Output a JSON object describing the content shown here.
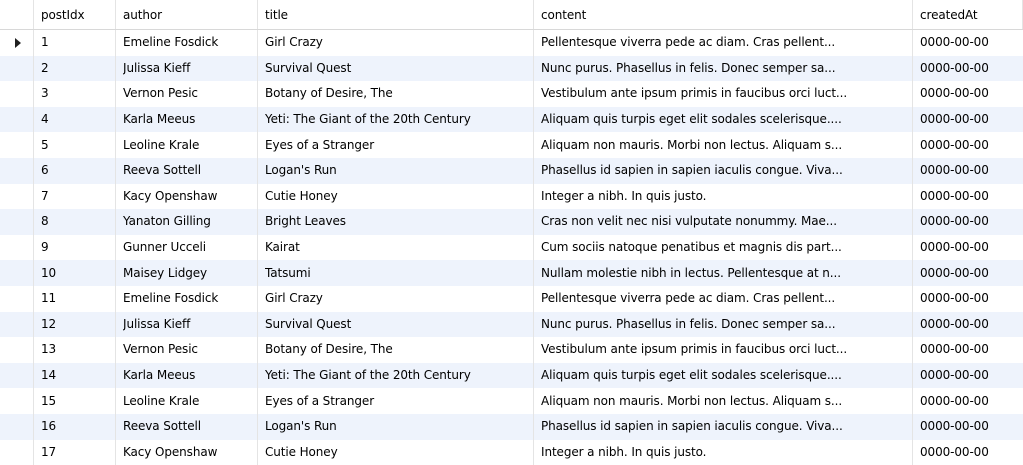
{
  "table": {
    "columns": [
      "postIdx",
      "author",
      "title",
      "content",
      "createdAt"
    ],
    "rows": [
      {
        "postIdx": "1",
        "author": "Emeline Fosdick",
        "title": "Girl Crazy",
        "content": "Pellentesque viverra pede ac diam. Cras pellent...",
        "createdAt": "0000-00-00"
      },
      {
        "postIdx": "2",
        "author": "Julissa Kieff",
        "title": "Survival Quest",
        "content": "Nunc purus. Phasellus in felis. Donec semper sa...",
        "createdAt": "0000-00-00"
      },
      {
        "postIdx": "3",
        "author": "Vernon Pesic",
        "title": "Botany of Desire, The",
        "content": "Vestibulum ante ipsum primis in faucibus orci luct...",
        "createdAt": "0000-00-00"
      },
      {
        "postIdx": "4",
        "author": "Karla Meeus",
        "title": "Yeti: The Giant of the 20th Century",
        "content": "Aliquam quis turpis eget elit sodales scelerisque....",
        "createdAt": "0000-00-00"
      },
      {
        "postIdx": "5",
        "author": "Leoline Krale",
        "title": "Eyes of a Stranger",
        "content": "Aliquam non mauris. Morbi non lectus. Aliquam s...",
        "createdAt": "0000-00-00"
      },
      {
        "postIdx": "6",
        "author": "Reeva Sottell",
        "title": "Logan's Run",
        "content": "Phasellus id sapien in sapien iaculis congue. Viva...",
        "createdAt": "0000-00-00"
      },
      {
        "postIdx": "7",
        "author": "Kacy Openshaw",
        "title": "Cutie Honey",
        "content": "Integer a nibh. In quis justo.",
        "createdAt": "0000-00-00"
      },
      {
        "postIdx": "8",
        "author": "Yanaton Gilling",
        "title": "Bright Leaves",
        "content": "Cras non velit nec nisi vulputate nonummy. Mae...",
        "createdAt": "0000-00-00"
      },
      {
        "postIdx": "9",
        "author": "Gunner Ucceli",
        "title": "Kairat",
        "content": "Cum sociis natoque penatibus et magnis dis part...",
        "createdAt": "0000-00-00"
      },
      {
        "postIdx": "10",
        "author": "Maisey Lidgey",
        "title": "Tatsumi",
        "content": "Nullam molestie nibh in lectus. Pellentesque at n...",
        "createdAt": "0000-00-00"
      },
      {
        "postIdx": "11",
        "author": "Emeline Fosdick",
        "title": "Girl Crazy",
        "content": "Pellentesque viverra pede ac diam. Cras pellent...",
        "createdAt": "0000-00-00"
      },
      {
        "postIdx": "12",
        "author": "Julissa Kieff",
        "title": "Survival Quest",
        "content": "Nunc purus. Phasellus in felis. Donec semper sa...",
        "createdAt": "0000-00-00"
      },
      {
        "postIdx": "13",
        "author": "Vernon Pesic",
        "title": "Botany of Desire, The",
        "content": "Vestibulum ante ipsum primis in faucibus orci luct...",
        "createdAt": "0000-00-00"
      },
      {
        "postIdx": "14",
        "author": "Karla Meeus",
        "title": "Yeti: The Giant of the 20th Century",
        "content": "Aliquam quis turpis eget elit sodales scelerisque....",
        "createdAt": "0000-00-00"
      },
      {
        "postIdx": "15",
        "author": "Leoline Krale",
        "title": "Eyes of a Stranger",
        "content": "Aliquam non mauris. Morbi non lectus. Aliquam s...",
        "createdAt": "0000-00-00"
      },
      {
        "postIdx": "16",
        "author": "Reeva Sottell",
        "title": "Logan's Run",
        "content": "Phasellus id sapien in sapien iaculis congue. Viva...",
        "createdAt": "0000-00-00"
      },
      {
        "postIdx": "17",
        "author": "Kacy Openshaw",
        "title": "Cutie Honey",
        "content": "Integer a nibh. In quis justo.",
        "createdAt": "0000-00-00"
      }
    ],
    "current_row_index": 0,
    "current_row_icon": "current-row-pointer-icon"
  },
  "colors": {
    "alt_row": "#eef3fc",
    "grid_line": "#e4e4e4"
  }
}
